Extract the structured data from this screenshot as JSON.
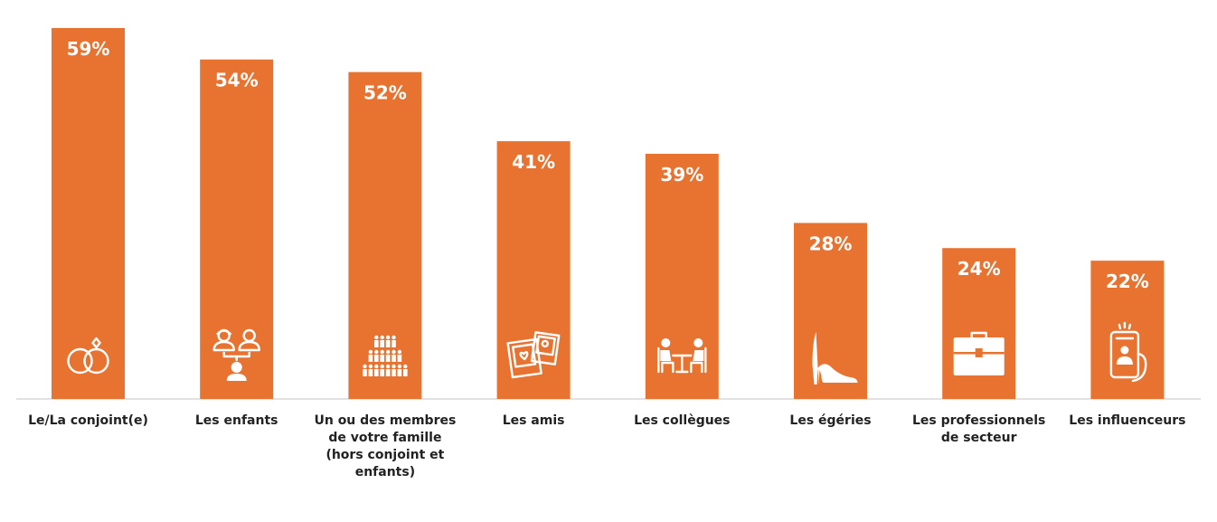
{
  "chart_data": {
    "type": "bar",
    "categories": [
      [
        "Le/La conjoint(e)"
      ],
      [
        "Les enfants"
      ],
      [
        "Un ou des membres",
        "de votre famille",
        "(hors conjoint et",
        "enfants)"
      ],
      [
        "Les amis"
      ],
      [
        "Les collègues"
      ],
      [
        "Les égéries"
      ],
      [
        "Les professionnels",
        "de secteur"
      ],
      [
        "Les influenceurs"
      ]
    ],
    "values": [
      59,
      54,
      52,
      41,
      39,
      28,
      24,
      22
    ],
    "value_labels": [
      "59%",
      "54%",
      "52%",
      "41%",
      "39%",
      "28%",
      "24%",
      "22%"
    ],
    "icons": [
      "rings-icon",
      "family-tree-icon",
      "crowd-icon",
      "photos-icon",
      "colleagues-table-icon",
      "high-heel-icon",
      "briefcase-icon",
      "phone-selfie-icon"
    ],
    "ylim": [
      0,
      59
    ],
    "grid": false,
    "bar_color": "#e87331",
    "axis_color": "#d9d9d9"
  }
}
